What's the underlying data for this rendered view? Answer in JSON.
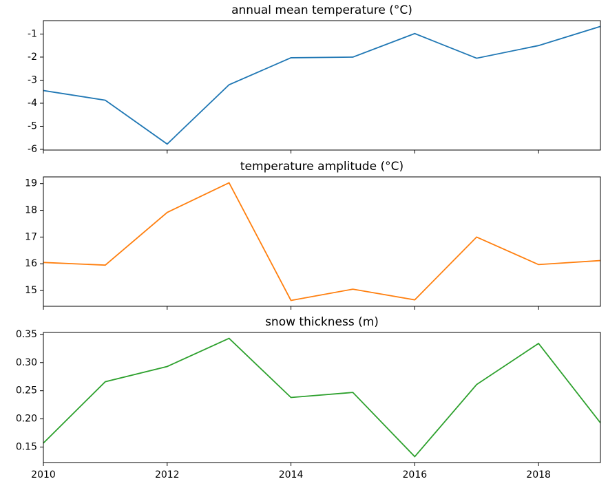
{
  "chart_data": [
    {
      "type": "line",
      "title": "annual mean temperature (°C)",
      "x": [
        2010,
        2011,
        2012,
        2013,
        2014,
        2015,
        2016,
        2017,
        2018,
        2019
      ],
      "values": [
        -3.45,
        -3.87,
        -5.77,
        -3.2,
        -2.03,
        -2.0,
        -0.98,
        -2.05,
        -1.5,
        -0.67
      ],
      "color": "#1f77b4",
      "xlim": [
        2010,
        2019
      ],
      "ylim": [
        -6.03,
        -0.42
      ],
      "yticks": [
        -6,
        -5,
        -4,
        -3,
        -2,
        -1
      ]
    },
    {
      "type": "line",
      "title": "temperature amplitude (°C)",
      "x": [
        2010,
        2011,
        2012,
        2013,
        2014,
        2015,
        2016,
        2017,
        2018,
        2019
      ],
      "values": [
        16.05,
        15.95,
        17.92,
        19.03,
        14.63,
        15.05,
        14.65,
        17.0,
        15.97,
        16.12
      ],
      "color": "#ff7f0e",
      "xlim": [
        2010,
        2019
      ],
      "ylim": [
        14.41,
        19.25
      ],
      "yticks": [
        15,
        16,
        17,
        18,
        19
      ]
    },
    {
      "type": "line",
      "title": "snow thickness (m)",
      "x": [
        2010,
        2011,
        2012,
        2013,
        2014,
        2015,
        2016,
        2017,
        2018,
        2019
      ],
      "values": [
        0.157,
        0.266,
        0.293,
        0.343,
        0.238,
        0.247,
        0.133,
        0.261,
        0.334,
        0.193
      ],
      "color": "#2ca02c",
      "xlim": [
        2010,
        2019
      ],
      "ylim": [
        0.1225,
        0.3535
      ],
      "yticks": [
        {
          "value": 0.15,
          "label": "0.15"
        },
        {
          "value": 0.2,
          "label": "0.20"
        },
        {
          "value": 0.25,
          "label": "0.25"
        },
        {
          "value": 0.3,
          "label": "0.30"
        },
        {
          "value": 0.35,
          "label": "0.35"
        }
      ],
      "xticks": [
        2010,
        2012,
        2014,
        2016,
        2018
      ]
    }
  ]
}
